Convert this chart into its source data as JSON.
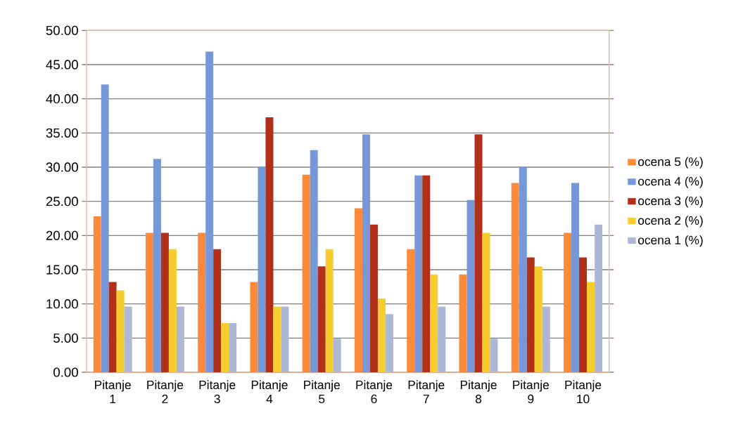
{
  "chart_data": {
    "type": "bar",
    "categories": [
      "Pitanje 1",
      "Pitanje 2",
      "Pitanje 3",
      "Pitanje 4",
      "Pitanje 5",
      "Pitanje 6",
      "Pitanje 7",
      "Pitanje 8",
      "Pitanje 9",
      "Pitanje 10"
    ],
    "series": [
      {
        "name": "ocena 5 (%)",
        "color": "#fd8a3a",
        "values": [
          22.8,
          20.4,
          20.4,
          13.2,
          28.9,
          24.0,
          18.0,
          14.3,
          27.7,
          20.4
        ]
      },
      {
        "name": "ocena 4 (%)",
        "color": "#7798d8",
        "values": [
          42.1,
          31.2,
          46.9,
          30.0,
          32.5,
          34.8,
          28.8,
          25.2,
          30.0,
          27.7
        ]
      },
      {
        "name": "ocena 3 (%)",
        "color": "#b22f1a",
        "values": [
          13.2,
          20.4,
          18.0,
          37.3,
          15.5,
          21.6,
          28.8,
          34.8,
          16.8,
          16.8
        ]
      },
      {
        "name": "ocena 2 (%)",
        "color": "#f5cd2f",
        "values": [
          12.0,
          18.0,
          7.2,
          9.6,
          18.0,
          10.8,
          14.3,
          20.4,
          15.5,
          13.2
        ]
      },
      {
        "name": "ocena 1 (%)",
        "color": "#adb8d6",
        "values": [
          9.6,
          9.6,
          7.2,
          9.6,
          4.9,
          8.5,
          9.6,
          4.9,
          9.6,
          21.6
        ]
      }
    ],
    "ylim": [
      0,
      50
    ],
    "yticks": [
      {
        "value": 0,
        "label": "0.00"
      },
      {
        "value": 5,
        "label": "5.00"
      },
      {
        "value": 10,
        "label": "10.00"
      },
      {
        "value": 15,
        "label": "15.00"
      },
      {
        "value": 20,
        "label": "20.00"
      },
      {
        "value": 25,
        "label": "25.00"
      },
      {
        "value": 30,
        "label": "30.00"
      },
      {
        "value": 35,
        "label": "35.00"
      },
      {
        "value": 40,
        "label": "40.00"
      },
      {
        "value": 45,
        "label": "45.00"
      },
      {
        "value": 50,
        "label": "50.00"
      }
    ],
    "grid": "y",
    "legend": "right"
  }
}
